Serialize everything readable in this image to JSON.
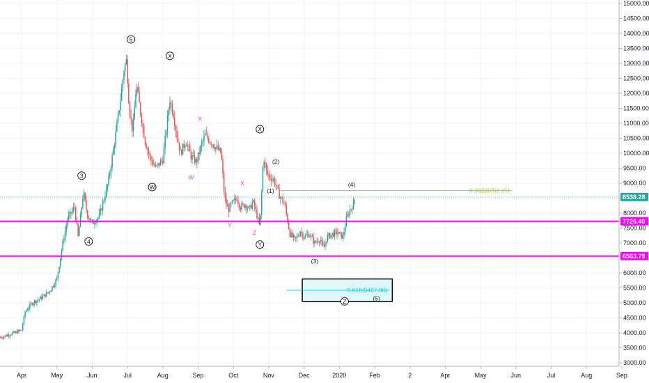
{
  "chart_data": {
    "type": "candlestick",
    "instrument": "BTCUSD",
    "colors": {
      "up": "#26a69a",
      "down": "#ef5350",
      "wick": "#555555",
      "support": "#ff00ff",
      "fib_382": "#9acd32",
      "fib_618": "#26c6da",
      "box_fill": "#e0f7fa",
      "price_line": "#26a69a"
    },
    "price_axis": {
      "min": 2800,
      "max": 15200,
      "ticks": [
        "15000.00",
        "14500.00",
        "14000.00",
        "13500.00",
        "13000.00",
        "12500.00",
        "12000.00",
        "11500.00",
        "11000.00",
        "10500.00",
        "10000.00",
        "9500.00",
        "9000.00",
        "8500.00",
        "8000.00",
        "7500.00",
        "7000.00",
        "6500.00",
        "6000.00",
        "5500.00",
        "5000.00",
        "4500.00",
        "4000.00",
        "3500.00",
        "3000.00"
      ]
    },
    "time_axis": {
      "labels": [
        {
          "label": "Apr",
          "month": 0
        },
        {
          "label": "May",
          "month": 1
        },
        {
          "label": "Jun",
          "month": 2
        },
        {
          "label": "Jul",
          "month": 3
        },
        {
          "label": "Aug",
          "month": 4
        },
        {
          "label": "Sep",
          "month": 5
        },
        {
          "label": "Oct",
          "month": 6
        },
        {
          "label": "Nov",
          "month": 7
        },
        {
          "label": "Dec",
          "month": 8
        },
        {
          "label": "2020",
          "month": 9
        },
        {
          "label": "Feb",
          "month": 10
        },
        {
          "label": "2",
          "month": 11
        },
        {
          "label": "Apr",
          "month": 12
        },
        {
          "label": "May",
          "month": 13
        },
        {
          "label": "Jun",
          "month": 14
        },
        {
          "label": "Jul",
          "month": 15
        },
        {
          "label": "Aug",
          "month": 16
        },
        {
          "label": "Sep",
          "month": 17
        }
      ]
    },
    "price_path": [
      [
        -0.6,
        3850
      ],
      [
        -0.2,
        4000
      ],
      [
        0.0,
        4100
      ],
      [
        0.1,
        4700
      ],
      [
        0.3,
        5000
      ],
      [
        0.6,
        5200
      ],
      [
        0.8,
        5400
      ],
      [
        1.0,
        5800
      ],
      [
        1.15,
        6900
      ],
      [
        1.3,
        7800
      ],
      [
        1.5,
        8200
      ],
      [
        1.6,
        7200
      ],
      [
        1.75,
        8700
      ],
      [
        1.85,
        8000
      ],
      [
        2.0,
        7650
      ],
      [
        2.2,
        7900
      ],
      [
        2.45,
        9000
      ],
      [
        2.65,
        10500
      ],
      [
        2.8,
        11800
      ],
      [
        2.9,
        12800
      ],
      [
        2.97,
        13100
      ],
      [
        3.05,
        11500
      ],
      [
        3.15,
        10700
      ],
      [
        3.25,
        12300
      ],
      [
        3.35,
        11500
      ],
      [
        3.5,
        10400
      ],
      [
        3.65,
        9800
      ],
      [
        3.8,
        9500
      ],
      [
        4.0,
        9800
      ],
      [
        4.1,
        10800
      ],
      [
        4.2,
        11800
      ],
      [
        4.3,
        11300
      ],
      [
        4.4,
        10600
      ],
      [
        4.5,
        10000
      ],
      [
        4.65,
        10400
      ],
      [
        4.8,
        9900
      ],
      [
        4.95,
        9700
      ],
      [
        5.1,
        10300
      ],
      [
        5.2,
        10600
      ],
      [
        5.35,
        10400
      ],
      [
        5.5,
        10200
      ],
      [
        5.65,
        10000
      ],
      [
        5.75,
        8500
      ],
      [
        5.85,
        8100
      ],
      [
        5.95,
        8300
      ],
      [
        6.1,
        8500
      ],
      [
        6.2,
        8200
      ],
      [
        6.35,
        8300
      ],
      [
        6.45,
        8100
      ],
      [
        6.55,
        8400
      ],
      [
        6.65,
        8000
      ],
      [
        6.75,
        7500
      ],
      [
        6.85,
        9900
      ],
      [
        6.95,
        9300
      ],
      [
        7.05,
        9200
      ],
      [
        7.15,
        9100
      ],
      [
        7.3,
        8600
      ],
      [
        7.45,
        8300
      ],
      [
        7.6,
        7300
      ],
      [
        7.75,
        7100
      ],
      [
        7.9,
        7400
      ],
      [
        8.0,
        7200
      ],
      [
        8.15,
        7300
      ],
      [
        8.3,
        7000
      ],
      [
        8.45,
        7150
      ],
      [
        8.55,
        6800
      ],
      [
        8.65,
        7200
      ],
      [
        8.8,
        7300
      ],
      [
        8.95,
        7350
      ],
      [
        9.1,
        7200
      ],
      [
        9.2,
        7800
      ],
      [
        9.3,
        8100
      ],
      [
        9.4,
        8300
      ],
      [
        9.45,
        8540
      ]
    ],
    "horizontal_lines": [
      {
        "price": 7726.4,
        "label": "7726.40",
        "color": "#ff00ff",
        "width": 2
      },
      {
        "price": 6563.79,
        "label": "6563.79",
        "color": "#ff00ff",
        "width": 2
      },
      {
        "price": 8538.28,
        "label": "8538.28",
        "color": "#26a69a",
        "width": 0.8,
        "dotted": true
      }
    ],
    "fib_levels": [
      {
        "label": "0.382(8752.15)",
        "price": 8752.15,
        "x_start_month": 7.3,
        "x_end_month": 13.9,
        "color": "#9acd32"
      },
      {
        "label": "0.618(5427.86)",
        "price": 5427.86,
        "x_start_month": 7.5,
        "x_end_month": 10.4,
        "color": "#26c6da"
      }
    ],
    "target_box": {
      "price_top": 5800,
      "price_bottom": 5050,
      "x_start_month": 7.95,
      "x_end_month": 10.5
    },
    "wave_labels": [
      {
        "text": "5",
        "circled": true,
        "month": 3.1,
        "price": 13800
      },
      {
        "text": "X",
        "circled": true,
        "month": 4.2,
        "price": 13250
      },
      {
        "text": "3",
        "circled": true,
        "month": 1.7,
        "price": 9250
      },
      {
        "text": "W",
        "circled": true,
        "month": 3.7,
        "price": 8870
      },
      {
        "text": "4",
        "circled": true,
        "month": 1.9,
        "price": 7050
      },
      {
        "text": "X",
        "circled": true,
        "month": 6.75,
        "price": 10800
      },
      {
        "text": "Y",
        "circled": true,
        "month": 6.75,
        "price": 6950
      },
      {
        "text": "Z",
        "circled": true,
        "month": 9.15,
        "price": 5050
      },
      {
        "text": "X",
        "circled": false,
        "pink": true,
        "month": 5.05,
        "price": 11150
      },
      {
        "text": "W",
        "circled": false,
        "pink": true,
        "month": 4.8,
        "price": 9200
      },
      {
        "text": "X",
        "circled": false,
        "pink": true,
        "month": 6.25,
        "price": 9000
      },
      {
        "text": "Y",
        "circled": false,
        "pink": true,
        "month": 5.9,
        "price": 7600
      },
      {
        "text": "Z",
        "circled": false,
        "pink": true,
        "month": 6.6,
        "price": 7350
      },
      {
        "text": "(1)",
        "circled": false,
        "month": 7.05,
        "price": 8750
      },
      {
        "text": "(2)",
        "circled": false,
        "month": 7.2,
        "price": 9720
      },
      {
        "text": "(3)",
        "circled": false,
        "month": 8.3,
        "price": 6400
      },
      {
        "text": "(4)",
        "circled": false,
        "month": 9.35,
        "price": 8950
      },
      {
        "text": "(5)",
        "circled": false,
        "month": 10.05,
        "price": 5150
      }
    ]
  }
}
